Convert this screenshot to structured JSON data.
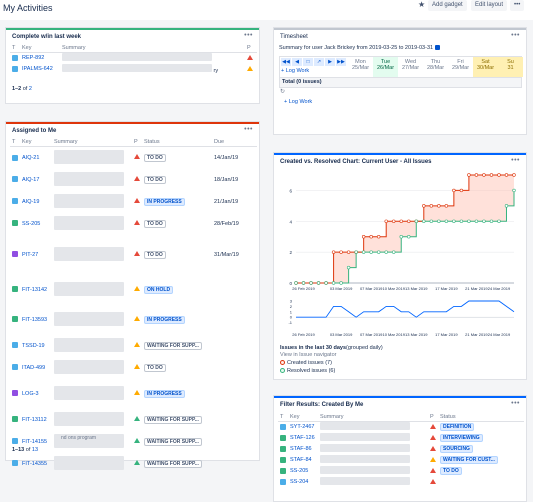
{
  "header": {
    "title": "My Activities",
    "add_gadget": "Add gadget",
    "edit_layout": "Edit layout",
    "more": "•••"
  },
  "colors": {
    "accent_green": "#36b37e",
    "accent_red": "#de350b",
    "accent_blue": "#0065ff",
    "link": "#0052cc"
  },
  "complete": {
    "title": "Complete w/in last week",
    "columns": [
      "T",
      "Key",
      "Summary",
      "P"
    ],
    "rows": [
      {
        "key": "REP-892",
        "icon": "task-icon",
        "priority": "high",
        "summary_tail": ""
      },
      {
        "key": "IPALMS-642",
        "icon": "subtask-icon",
        "priority": "medium",
        "summary_tail": "ry"
      }
    ],
    "count_prefix": "1–2",
    "count_of": "of",
    "count_total": "2"
  },
  "assigned": {
    "title": "Assigned to Me",
    "columns": [
      "T",
      "Key",
      "Summary",
      "P",
      "Status",
      "Due"
    ],
    "rows": [
      {
        "key": "AIQ-21",
        "icon": "sub-icon",
        "priority": "high",
        "status": "TO DO",
        "blue": false,
        "due": "14/Jan/19"
      },
      {
        "key": "AIQ-17",
        "icon": "sub-icon",
        "priority": "high",
        "status": "TO DO",
        "blue": false,
        "due": "18/Jan/19"
      },
      {
        "key": "AIQ-19",
        "icon": "sub-icon",
        "priority": "high",
        "status": "IN PROGRESS",
        "blue": true,
        "due": "21/Jan/19"
      },
      {
        "key": "SS-205",
        "icon": "imp-icon",
        "priority": "high",
        "status": "TO DO",
        "blue": false,
        "due": "28/Feb/19"
      },
      {
        "key": "PIT-27",
        "icon": "epic-icon",
        "priority": "high",
        "status": "TO DO",
        "blue": false,
        "due": "31/Mar/19"
      },
      {
        "key": "FIT-13142",
        "icon": "imp-icon",
        "priority": "medium",
        "status": "ON HOLD",
        "blue": true,
        "due": ""
      },
      {
        "key": "FIT-13593",
        "icon": "imp-icon",
        "priority": "medium",
        "status": "IN PROGRESS",
        "blue": true,
        "due": ""
      },
      {
        "key": "TSSD-19",
        "icon": "task-icon",
        "priority": "medium",
        "status": "WAITING FOR SUPP...",
        "blue": false,
        "due": ""
      },
      {
        "key": "ITAD-499",
        "icon": "task-icon",
        "priority": "medium",
        "status": "TO DO",
        "blue": false,
        "due": ""
      },
      {
        "key": "LOG-3",
        "icon": "epic-icon",
        "priority": "medium",
        "status": "IN PROGRESS",
        "blue": true,
        "due": ""
      },
      {
        "key": "FIT-13112",
        "icon": "imp-icon",
        "priority": "low",
        "status": "WAITING FOR SUPP...",
        "blue": false,
        "due": ""
      },
      {
        "key": "FIT-14155",
        "icon": "task-icon",
        "priority": "low",
        "status": "WAITING FOR SUPP...",
        "blue": false,
        "due": ""
      },
      {
        "key": "FIT-14355",
        "icon": "task-icon",
        "priority": "low",
        "status": "WAITING FOR SUPP...",
        "blue": false,
        "due": ""
      }
    ],
    "trailing_text": "nd ons program",
    "count_prefix": "1–13",
    "count_of": "of",
    "count_total": "13"
  },
  "timesheet": {
    "title": "Timesheet",
    "summary": "Summary for user Jack Brickey from 2019-03-25 to 2019-03-31",
    "log_work": "+ Log Work",
    "days": [
      {
        "name": "Mon",
        "date": "25/Mar",
        "kind": "normal"
      },
      {
        "name": "Tue",
        "date": "26/Mar",
        "kind": "today"
      },
      {
        "name": "Wed",
        "date": "27/Mar",
        "kind": "normal"
      },
      {
        "name": "Thu",
        "date": "28/Mar",
        "kind": "normal"
      },
      {
        "name": "Fri",
        "date": "29/Mar",
        "kind": "normal"
      },
      {
        "name": "Sat",
        "date": "30/Mar",
        "kind": "weekend"
      },
      {
        "name": "Su",
        "date": "31",
        "kind": "weekend"
      }
    ],
    "total": "Total (0 issues)",
    "log_work_bottom": "+ Log Work"
  },
  "created_resolved": {
    "title": "Created vs. Resolved Chart: Current User - All Issues",
    "subtitle_bold": "Issues in the last 30 days",
    "subtitle_rest": "(grouped daily)",
    "view_link": "View in Issue navigator",
    "created_legend": "Created issues (7)",
    "resolved_legend": "Resolved issues (6)"
  },
  "filter": {
    "title": "Filter Results: Created By Me",
    "columns": [
      "T",
      "Key",
      "Summary",
      "P",
      "Status"
    ],
    "rows": [
      {
        "key": "SYT-2467",
        "icon": "task-icon",
        "priority": "high",
        "status": "DEFINITION",
        "blue": true
      },
      {
        "key": "STAF-126",
        "icon": "imp-icon",
        "priority": "high",
        "status": "INTERVIEWING",
        "blue": true
      },
      {
        "key": "STAF-86",
        "icon": "imp-icon",
        "priority": "high",
        "status": "SOURCING",
        "blue": true
      },
      {
        "key": "STAF-84",
        "icon": "imp-icon",
        "priority": "medium",
        "status": "WAITING FOR CUST...",
        "blue": true
      },
      {
        "key": "SS-205",
        "icon": "imp-icon",
        "priority": "high",
        "status": "TO DO",
        "blue": true
      },
      {
        "key": "SS-204",
        "icon": "sub-icon",
        "priority": "high",
        "status": "",
        "blue": false
      }
    ]
  },
  "chart_data": {
    "type": "line",
    "title": "Created vs. Resolved Chart: Current User - All Issues",
    "main": {
      "x": [
        "25 Feb 2019",
        "26 Feb 2019",
        "27 Feb 2019",
        "28 Feb 2019",
        "1 Mar 2019",
        "2 Mar 2019",
        "3 Mar 2019",
        "4 Mar 2019",
        "5 Mar 2019",
        "6 Mar 2019",
        "7 Mar 2019",
        "8 Mar 2019",
        "9 Mar 2019",
        "10 Mar 2019",
        "11 Mar 2019",
        "12 Mar 2019",
        "13 Mar 2019",
        "14 Mar 2019",
        "15 Mar 2019",
        "16 Mar 2019",
        "17 Mar 2019",
        "18 Mar 2019",
        "19 Mar 2019",
        "20 Mar 2019",
        "21 Mar 2019",
        "22 Mar 2019",
        "23 Mar 2019",
        "24 Mar 2019",
        "25 Mar 2019",
        "26 Mar 2019"
      ],
      "x_tick_labels": [
        "26 Feb 2019",
        "03 Mar 2019",
        "07 Mar 2019",
        "10 Mar 2019",
        "13 Mar 2019",
        "17 Mar 2019",
        "21 Mar 2019",
        "24 Mar 2019"
      ],
      "x_tick_index": [
        1,
        6,
        10,
        13,
        16,
        20,
        24,
        27
      ],
      "y_ticks": [
        0,
        2,
        4,
        6
      ],
      "ylim": [
        0,
        7
      ],
      "series": [
        {
          "name": "Created issues (7)",
          "color": "#de350b",
          "values": [
            0,
            0,
            0,
            0,
            0,
            2,
            2,
            2,
            2,
            3,
            3,
            3,
            4,
            4,
            4,
            4,
            4,
            5,
            5,
            5,
            5,
            6,
            6,
            7,
            7,
            7,
            7,
            7,
            7,
            7
          ]
        },
        {
          "name": "Resolved issues (6)",
          "color": "#36b37e",
          "values": [
            0,
            0,
            0,
            0,
            0,
            0,
            0,
            1,
            2,
            2,
            2,
            2,
            2,
            2,
            3,
            3,
            4,
            4,
            4,
            4,
            4,
            4,
            4,
            4,
            4,
            4,
            4,
            4,
            5,
            6
          ]
        }
      ]
    },
    "delta": {
      "y_ticks": [
        -1,
        0,
        1,
        2,
        3
      ],
      "ylim": [
        -2,
        3
      ],
      "color": "#0065ff",
      "values": [
        0,
        0,
        0,
        0,
        0,
        2,
        2,
        1,
        0,
        1,
        1,
        1,
        2,
        2,
        1,
        1,
        0,
        1,
        1,
        1,
        1,
        2,
        2,
        3,
        3,
        3,
        3,
        3,
        2,
        1
      ]
    }
  }
}
